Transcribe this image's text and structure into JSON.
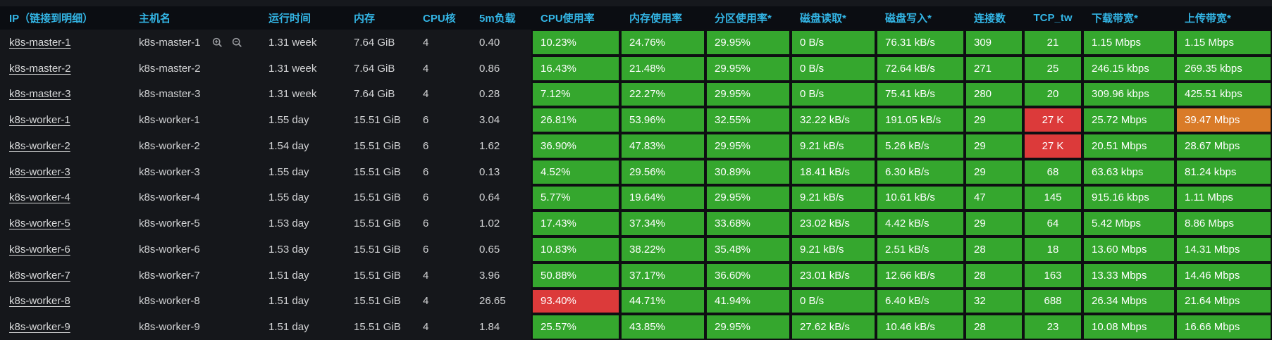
{
  "colors": {
    "header_text": "#33b5e5",
    "ok_green": "#35a72e",
    "alert_red": "#dc3a3a",
    "warn_orange": "#d97b28",
    "header_bg": "#0b0d12",
    "row_bg": "#15171b"
  },
  "table": {
    "columns": [
      {
        "key": "ip",
        "label": "IP（链接到明细）",
        "type": "plain",
        "align": "left"
      },
      {
        "key": "hostname",
        "label": "主机名",
        "type": "plain",
        "align": "left"
      },
      {
        "key": "uptime",
        "label": "运行时间",
        "type": "plain",
        "align": "left"
      },
      {
        "key": "memory",
        "label": "内存",
        "type": "plain",
        "align": "left"
      },
      {
        "key": "cpu_cores",
        "label": "CPU核",
        "type": "plain",
        "align": "left"
      },
      {
        "key": "load_5m",
        "label": "5m负载",
        "type": "plain",
        "align": "left"
      },
      {
        "key": "cpu_usage",
        "label": "CPU使用率",
        "type": "metric",
        "align": "left"
      },
      {
        "key": "mem_usage",
        "label": "内存使用率",
        "type": "metric",
        "align": "left"
      },
      {
        "key": "partition_usage",
        "label": "分区使用率*",
        "type": "metric",
        "align": "left"
      },
      {
        "key": "disk_read",
        "label": "磁盘读取*",
        "type": "metric",
        "align": "left"
      },
      {
        "key": "disk_write",
        "label": "磁盘写入*",
        "type": "metric",
        "align": "left"
      },
      {
        "key": "connections",
        "label": "连接数",
        "type": "metric",
        "align": "left"
      },
      {
        "key": "tcp_tw",
        "label": "TCP_tw",
        "type": "metric",
        "align": "center"
      },
      {
        "key": "download_bw",
        "label": "下载带宽*",
        "type": "metric",
        "align": "left"
      },
      {
        "key": "upload_bw",
        "label": "上传带宽*",
        "type": "metric",
        "align": "left"
      }
    ],
    "magnifier_icons": [
      "zoom-in-icon",
      "zoom-out-icon"
    ],
    "rows": [
      {
        "ip": "k8s-master-1",
        "hostname": "k8s-master-1",
        "show_magnifiers": true,
        "uptime": "1.31 week",
        "memory": "7.64 GiB",
        "cpu_cores": "4",
        "load_5m": "0.40",
        "metrics": [
          {
            "value": "10.23%",
            "color": "green"
          },
          {
            "value": "24.76%",
            "color": "green"
          },
          {
            "value": "29.95%",
            "color": "green"
          },
          {
            "value": "0 B/s",
            "color": "green"
          },
          {
            "value": "76.31 kB/s",
            "color": "green"
          },
          {
            "value": "309",
            "color": "green"
          },
          {
            "value": "21",
            "color": "green"
          },
          {
            "value": "1.15 Mbps",
            "color": "green"
          },
          {
            "value": "1.15 Mbps",
            "color": "green"
          }
        ]
      },
      {
        "ip": "k8s-master-2",
        "hostname": "k8s-master-2",
        "show_magnifiers": false,
        "uptime": "1.31 week",
        "memory": "7.64 GiB",
        "cpu_cores": "4",
        "load_5m": "0.86",
        "metrics": [
          {
            "value": "16.43%",
            "color": "green"
          },
          {
            "value": "21.48%",
            "color": "green"
          },
          {
            "value": "29.95%",
            "color": "green"
          },
          {
            "value": "0 B/s",
            "color": "green"
          },
          {
            "value": "72.64 kB/s",
            "color": "green"
          },
          {
            "value": "271",
            "color": "green"
          },
          {
            "value": "25",
            "color": "green"
          },
          {
            "value": "246.15 kbps",
            "color": "green"
          },
          {
            "value": "269.35 kbps",
            "color": "green"
          }
        ]
      },
      {
        "ip": "k8s-master-3",
        "hostname": "k8s-master-3",
        "show_magnifiers": false,
        "uptime": "1.31 week",
        "memory": "7.64 GiB",
        "cpu_cores": "4",
        "load_5m": "0.28",
        "metrics": [
          {
            "value": "7.12%",
            "color": "green"
          },
          {
            "value": "22.27%",
            "color": "green"
          },
          {
            "value": "29.95%",
            "color": "green"
          },
          {
            "value": "0 B/s",
            "color": "green"
          },
          {
            "value": "75.41 kB/s",
            "color": "green"
          },
          {
            "value": "280",
            "color": "green"
          },
          {
            "value": "20",
            "color": "green"
          },
          {
            "value": "309.96 kbps",
            "color": "green"
          },
          {
            "value": "425.51 kbps",
            "color": "green"
          }
        ]
      },
      {
        "ip": "k8s-worker-1",
        "hostname": "k8s-worker-1",
        "show_magnifiers": false,
        "uptime": "1.55 day",
        "memory": "15.51 GiB",
        "cpu_cores": "6",
        "load_5m": "3.04",
        "metrics": [
          {
            "value": "26.81%",
            "color": "green"
          },
          {
            "value": "53.96%",
            "color": "green"
          },
          {
            "value": "32.55%",
            "color": "green"
          },
          {
            "value": "32.22 kB/s",
            "color": "green"
          },
          {
            "value": "191.05 kB/s",
            "color": "green"
          },
          {
            "value": "29",
            "color": "green"
          },
          {
            "value": "27 K",
            "color": "red"
          },
          {
            "value": "25.72 Mbps",
            "color": "green"
          },
          {
            "value": "39.47 Mbps",
            "color": "orange"
          }
        ]
      },
      {
        "ip": "k8s-worker-2",
        "hostname": "k8s-worker-2",
        "show_magnifiers": false,
        "uptime": "1.54 day",
        "memory": "15.51 GiB",
        "cpu_cores": "6",
        "load_5m": "1.62",
        "metrics": [
          {
            "value": "36.90%",
            "color": "green"
          },
          {
            "value": "47.83%",
            "color": "green"
          },
          {
            "value": "29.95%",
            "color": "green"
          },
          {
            "value": "9.21 kB/s",
            "color": "green"
          },
          {
            "value": "5.26 kB/s",
            "color": "green"
          },
          {
            "value": "29",
            "color": "green"
          },
          {
            "value": "27 K",
            "color": "red"
          },
          {
            "value": "20.51 Mbps",
            "color": "green"
          },
          {
            "value": "28.67 Mbps",
            "color": "green"
          }
        ]
      },
      {
        "ip": "k8s-worker-3",
        "hostname": "k8s-worker-3",
        "show_magnifiers": false,
        "uptime": "1.55 day",
        "memory": "15.51 GiB",
        "cpu_cores": "6",
        "load_5m": "0.13",
        "metrics": [
          {
            "value": "4.52%",
            "color": "green"
          },
          {
            "value": "29.56%",
            "color": "green"
          },
          {
            "value": "30.89%",
            "color": "green"
          },
          {
            "value": "18.41 kB/s",
            "color": "green"
          },
          {
            "value": "6.30 kB/s",
            "color": "green"
          },
          {
            "value": "29",
            "color": "green"
          },
          {
            "value": "68",
            "color": "green"
          },
          {
            "value": "63.63 kbps",
            "color": "green"
          },
          {
            "value": "81.24 kbps",
            "color": "green"
          }
        ]
      },
      {
        "ip": "k8s-worker-4",
        "hostname": "k8s-worker-4",
        "show_magnifiers": false,
        "uptime": "1.55 day",
        "memory": "15.51 GiB",
        "cpu_cores": "6",
        "load_5m": "0.64",
        "metrics": [
          {
            "value": "5.77%",
            "color": "green"
          },
          {
            "value": "19.64%",
            "color": "green"
          },
          {
            "value": "29.95%",
            "color": "green"
          },
          {
            "value": "9.21 kB/s",
            "color": "green"
          },
          {
            "value": "10.61 kB/s",
            "color": "green"
          },
          {
            "value": "47",
            "color": "green"
          },
          {
            "value": "145",
            "color": "green"
          },
          {
            "value": "915.16 kbps",
            "color": "green"
          },
          {
            "value": "1.11 Mbps",
            "color": "green"
          }
        ]
      },
      {
        "ip": "k8s-worker-5",
        "hostname": "k8s-worker-5",
        "show_magnifiers": false,
        "uptime": "1.53 day",
        "memory": "15.51 GiB",
        "cpu_cores": "6",
        "load_5m": "1.02",
        "metrics": [
          {
            "value": "17.43%",
            "color": "green"
          },
          {
            "value": "37.34%",
            "color": "green"
          },
          {
            "value": "33.68%",
            "color": "green"
          },
          {
            "value": "23.02 kB/s",
            "color": "green"
          },
          {
            "value": "4.42 kB/s",
            "color": "green"
          },
          {
            "value": "29",
            "color": "green"
          },
          {
            "value": "64",
            "color": "green"
          },
          {
            "value": "5.42 Mbps",
            "color": "green"
          },
          {
            "value": "8.86 Mbps",
            "color": "green"
          }
        ]
      },
      {
        "ip": "k8s-worker-6",
        "hostname": "k8s-worker-6",
        "show_magnifiers": false,
        "uptime": "1.53 day",
        "memory": "15.51 GiB",
        "cpu_cores": "6",
        "load_5m": "0.65",
        "metrics": [
          {
            "value": "10.83%",
            "color": "green"
          },
          {
            "value": "38.22%",
            "color": "green"
          },
          {
            "value": "35.48%",
            "color": "green"
          },
          {
            "value": "9.21 kB/s",
            "color": "green"
          },
          {
            "value": "2.51 kB/s",
            "color": "green"
          },
          {
            "value": "28",
            "color": "green"
          },
          {
            "value": "18",
            "color": "green"
          },
          {
            "value": "13.60 Mbps",
            "color": "green"
          },
          {
            "value": "14.31 Mbps",
            "color": "green"
          }
        ]
      },
      {
        "ip": "k8s-worker-7",
        "hostname": "k8s-worker-7",
        "show_magnifiers": false,
        "uptime": "1.51 day",
        "memory": "15.51 GiB",
        "cpu_cores": "4",
        "load_5m": "3.96",
        "metrics": [
          {
            "value": "50.88%",
            "color": "green"
          },
          {
            "value": "37.17%",
            "color": "green"
          },
          {
            "value": "36.60%",
            "color": "green"
          },
          {
            "value": "23.01 kB/s",
            "color": "green"
          },
          {
            "value": "12.66 kB/s",
            "color": "green"
          },
          {
            "value": "28",
            "color": "green"
          },
          {
            "value": "163",
            "color": "green"
          },
          {
            "value": "13.33 Mbps",
            "color": "green"
          },
          {
            "value": "14.46 Mbps",
            "color": "green"
          }
        ]
      },
      {
        "ip": "k8s-worker-8",
        "hostname": "k8s-worker-8",
        "show_magnifiers": false,
        "uptime": "1.51 day",
        "memory": "15.51 GiB",
        "cpu_cores": "4",
        "load_5m": "26.65",
        "metrics": [
          {
            "value": "93.40%",
            "color": "red"
          },
          {
            "value": "44.71%",
            "color": "green"
          },
          {
            "value": "41.94%",
            "color": "green"
          },
          {
            "value": "0 B/s",
            "color": "green"
          },
          {
            "value": "6.40 kB/s",
            "color": "green"
          },
          {
            "value": "32",
            "color": "green"
          },
          {
            "value": "688",
            "color": "green"
          },
          {
            "value": "26.34 Mbps",
            "color": "green"
          },
          {
            "value": "21.64 Mbps",
            "color": "green"
          }
        ]
      },
      {
        "ip": "k8s-worker-9",
        "hostname": "k8s-worker-9",
        "show_magnifiers": false,
        "uptime": "1.51 day",
        "memory": "15.51 GiB",
        "cpu_cores": "4",
        "load_5m": "1.84",
        "metrics": [
          {
            "value": "25.57%",
            "color": "green"
          },
          {
            "value": "43.85%",
            "color": "green"
          },
          {
            "value": "29.95%",
            "color": "green"
          },
          {
            "value": "27.62 kB/s",
            "color": "green"
          },
          {
            "value": "10.46 kB/s",
            "color": "green"
          },
          {
            "value": "28",
            "color": "green"
          },
          {
            "value": "23",
            "color": "green"
          },
          {
            "value": "10.08 Mbps",
            "color": "green"
          },
          {
            "value": "16.66 Mbps",
            "color": "green"
          }
        ]
      }
    ]
  }
}
